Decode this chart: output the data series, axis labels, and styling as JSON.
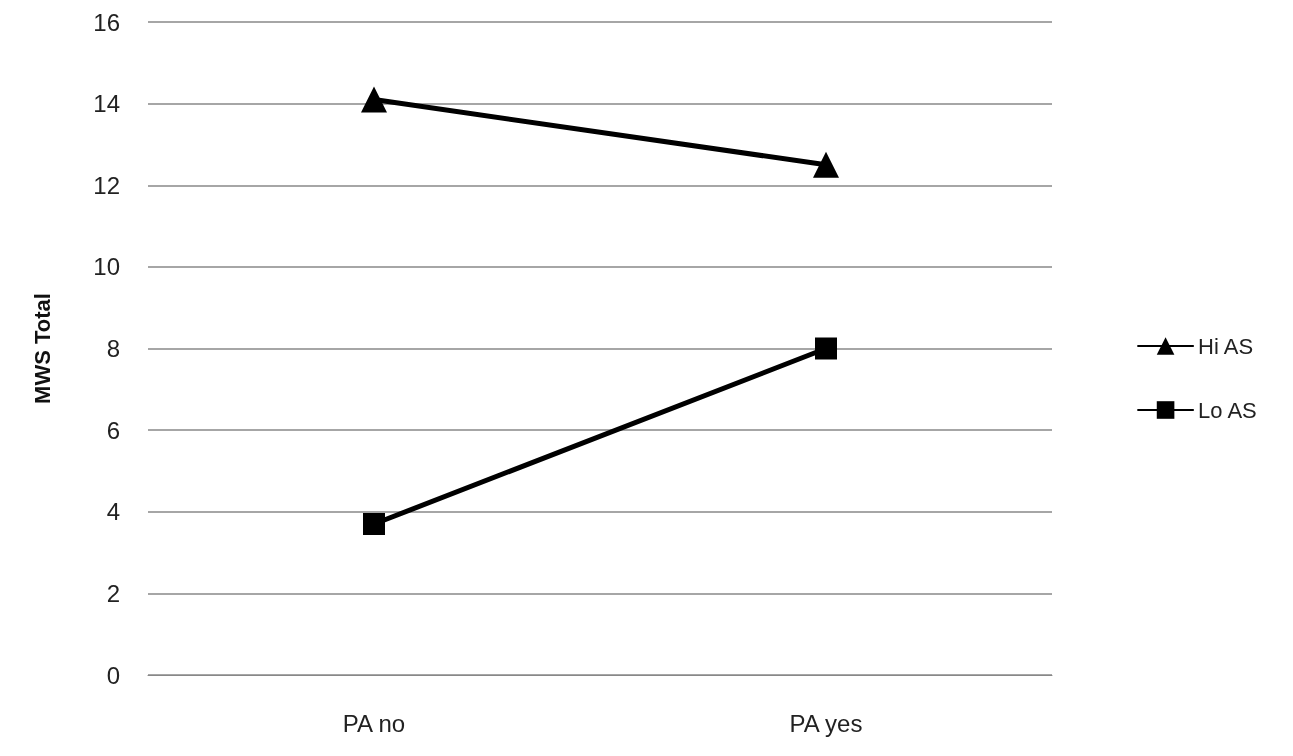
{
  "chart_data": {
    "type": "line",
    "ylabel": "MWS Total",
    "categories": [
      "PA no",
      "PA yes"
    ],
    "series": [
      {
        "name": "Hi AS",
        "color": "#000000",
        "marker": "triangle",
        "values": [
          14.1,
          12.5
        ]
      },
      {
        "name": "Lo AS",
        "color": "#000000",
        "marker": "square",
        "values": [
          3.7,
          8.0
        ]
      }
    ],
    "ylim": [
      0,
      16
    ],
    "yticks": [
      0,
      2,
      4,
      6,
      8,
      10,
      12,
      14,
      16
    ],
    "grid": "y",
    "legend": "right",
    "line_style": "solid"
  }
}
